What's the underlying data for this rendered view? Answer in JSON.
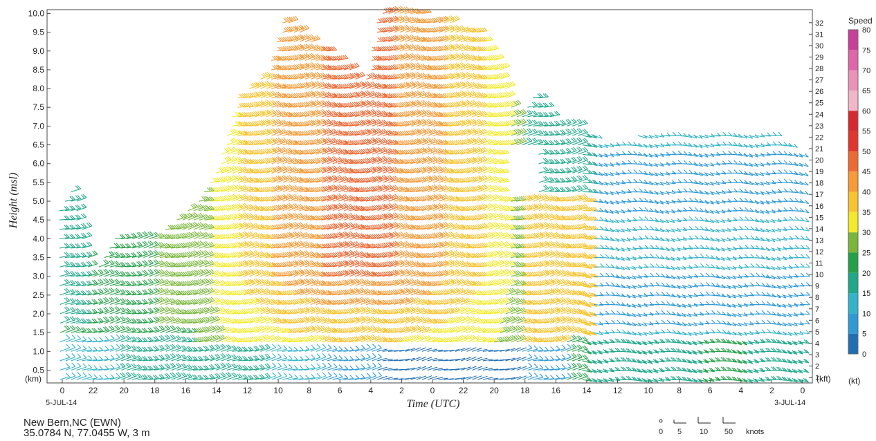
{
  "chart_data": {
    "type": "wind-barb-time-height",
    "xlabel": "Time (UTC)",
    "ylabel": "Height (msl)",
    "x_ticks": [
      "0",
      "22",
      "20",
      "18",
      "16",
      "14",
      "12",
      "10",
      "8",
      "6",
      "4",
      "2",
      "0",
      "22",
      "20",
      "18",
      "16",
      "14",
      "12",
      "10",
      "8",
      "6",
      "4",
      "2",
      "0"
    ],
    "x_start_date": "5-JUL-14",
    "x_end_date": "3-JUL-14",
    "x_direction": "reversed (time increases right to left)",
    "y_left_unit": "(km)",
    "y_left_ticks": [
      "0.5",
      "1.0",
      "1.5",
      "2.0",
      "2.5",
      "3.0",
      "3.5",
      "4.0",
      "4.5",
      "5.0",
      "5.5",
      "6.0",
      "6.5",
      "7.0",
      "7.5",
      "8.0",
      "8.5",
      "9.0",
      "9.5",
      "10.0"
    ],
    "y_left_range_km": [
      0.16,
      10.1
    ],
    "y_right_unit": "(kft)",
    "y_right_ticks": [
      "1",
      "2",
      "3",
      "4",
      "5",
      "6",
      "7",
      "8",
      "9",
      "10",
      "11",
      "12",
      "13",
      "14",
      "15",
      "16",
      "17",
      "18",
      "19",
      "20",
      "21",
      "22",
      "23",
      "24",
      "25",
      "26",
      "27",
      "28",
      "29",
      "30",
      "31",
      "32"
    ],
    "colorbar": {
      "title": "Speed",
      "unit": "(kt)",
      "ticks": [
        "0",
        "5",
        "10",
        "15",
        "20",
        "25",
        "30",
        "35",
        "40",
        "45",
        "50",
        "55",
        "60",
        "65",
        "70",
        "75",
        "80"
      ],
      "range": [
        0,
        80
      ],
      "colors": [
        "#1f6fb5",
        "#2f9ad6",
        "#33b3c9",
        "#1fa88a",
        "#23a048",
        "#79b63a",
        "#f2ea2a",
        "#f7c431",
        "#f59b38",
        "#ee6a34",
        "#e0362e",
        "#d52a2f",
        "#f2b6c8",
        "#ea92b9",
        "#dd66aa",
        "#c8409b",
        "#a3277f"
      ]
    },
    "legend": {
      "items": [
        "0",
        "5",
        "10",
        "50"
      ],
      "unit": "knots"
    },
    "grid": false
  },
  "station": {
    "name": "New Bern,NC (EWN)",
    "location": "35.0784 N, 77.0455 W, 3 m"
  }
}
